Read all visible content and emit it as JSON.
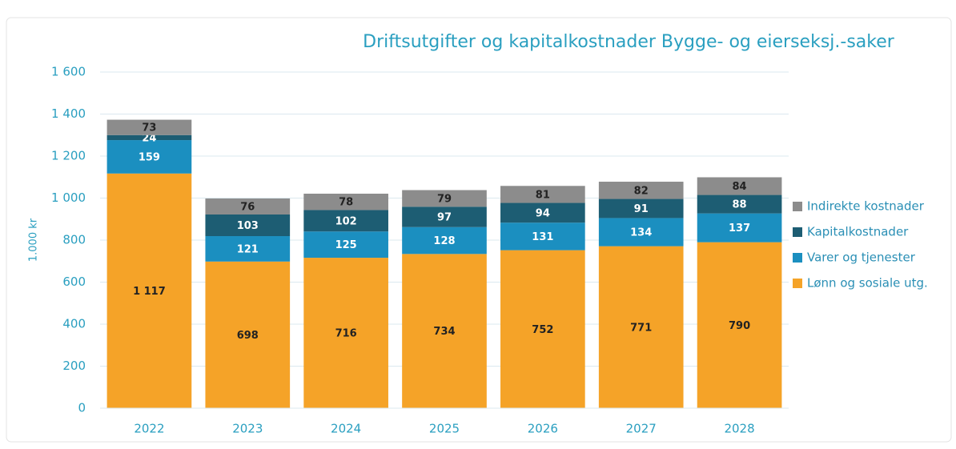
{
  "chart_data": {
    "type": "stacked-bar",
    "title": "Driftsutgifter og kapitalkostnader Bygge- og eierseksj.-saker",
    "y_label": "1.000 kr",
    "categories": [
      "2022",
      "2023",
      "2024",
      "2025",
      "2026",
      "2027",
      "2028"
    ],
    "series": [
      {
        "name": "Lønn og sosiale utg.",
        "color": "#f5a328",
        "values": [
          1117,
          698,
          716,
          734,
          752,
          771,
          790
        ],
        "value_labels": [
          "1 117",
          "698",
          "716",
          "734",
          "752",
          "771",
          "790"
        ]
      },
      {
        "name": "Varer og tjenester",
        "color": "#1b8fc0",
        "values": [
          159,
          121,
          125,
          128,
          131,
          134,
          137
        ]
      },
      {
        "name": "Kapitalkostnader",
        "color": "#1d5d73",
        "values": [
          24,
          103,
          102,
          97,
          94,
          91,
          88
        ]
      },
      {
        "name": "Indirekte kostnader",
        "color": "#8c8c8c",
        "values": [
          73,
          76,
          78,
          79,
          81,
          82,
          84
        ]
      }
    ],
    "ylim": [
      0,
      1600
    ],
    "yticks": [
      0,
      200,
      400,
      600,
      800,
      {
        "value": 1000,
        "label": "1 000"
      },
      {
        "value": 1200,
        "label": "1 200"
      },
      {
        "value": 1400,
        "label": "1 400"
      },
      {
        "value": 1600,
        "label": "1 600"
      }
    ],
    "grid": true
  }
}
